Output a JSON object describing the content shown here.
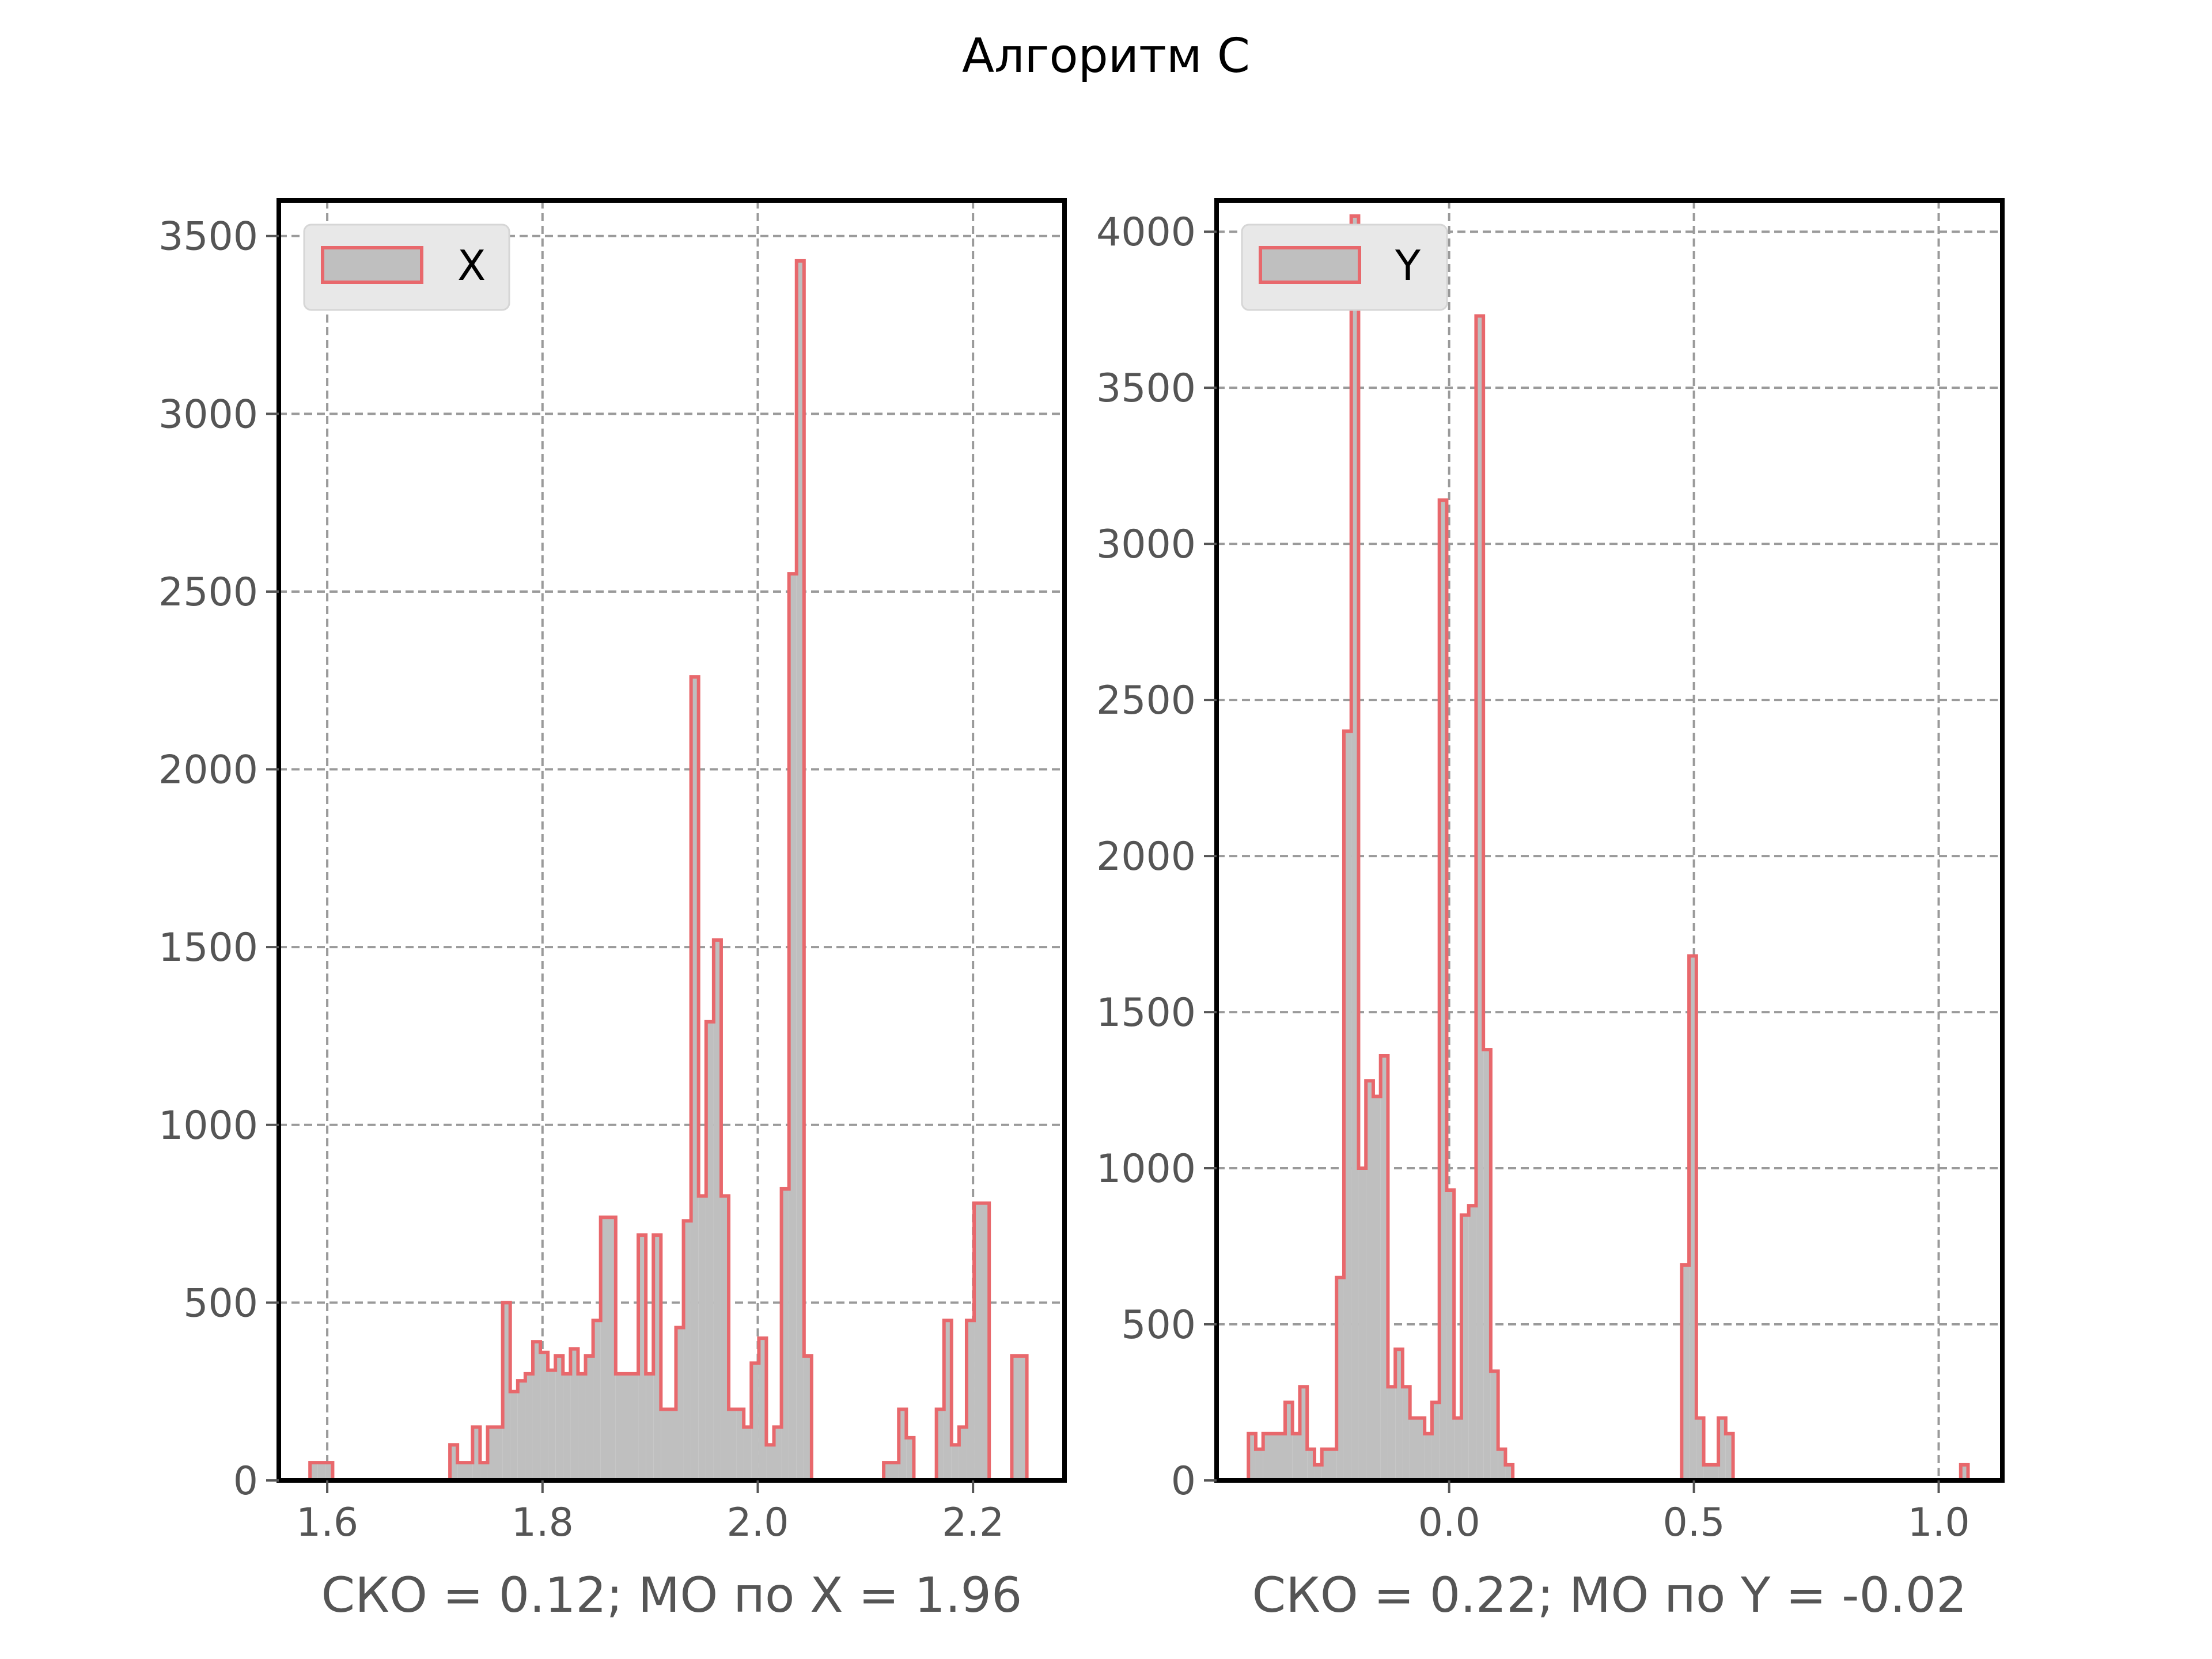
{
  "suptitle": "Алгоритм C",
  "colors": {
    "fill": "#bfbfbf",
    "edge": "#e8686c",
    "grid": "#9a9a9a",
    "frame": "#000000",
    "tick_text": "#555555",
    "legend_bg": "#e8e8e8"
  },
  "chart_data": [
    {
      "type": "histogram",
      "legend": "X",
      "legend_position": "upper-left",
      "xlabel": "СКО = 0.12; МО по X = 1.96",
      "xlim": [
        1.555,
        2.285
      ],
      "ylim": [
        0,
        3600
      ],
      "grid": true,
      "xticks": [
        1.6,
        1.8,
        2.0,
        2.2
      ],
      "xtick_labels": [
        "1.6",
        "1.8",
        "2.0",
        "2.2"
      ],
      "yticks": [
        0,
        500,
        1000,
        1500,
        2000,
        2500,
        3000,
        3500
      ],
      "ytick_labels": [
        "0",
        "500",
        "1000",
        "1500",
        "2000",
        "2500",
        "3000",
        "3500"
      ],
      "bins": [
        [
          1.584,
          1.591,
          50
        ],
        [
          1.591,
          1.598,
          50
        ],
        [
          1.598,
          1.605,
          50
        ],
        [
          1.714,
          1.721,
          100
        ],
        [
          1.721,
          1.735,
          50
        ],
        [
          1.735,
          1.742,
          150
        ],
        [
          1.742,
          1.749,
          50
        ],
        [
          1.749,
          1.763,
          150
        ],
        [
          1.763,
          1.77,
          500
        ],
        [
          1.77,
          1.777,
          250
        ],
        [
          1.777,
          1.784,
          280
        ],
        [
          1.784,
          1.791,
          300
        ],
        [
          1.791,
          1.798,
          390
        ],
        [
          1.798,
          1.805,
          360
        ],
        [
          1.805,
          1.812,
          310
        ],
        [
          1.812,
          1.819,
          350
        ],
        [
          1.819,
          1.826,
          300
        ],
        [
          1.826,
          1.833,
          370
        ],
        [
          1.833,
          1.84,
          300
        ],
        [
          1.84,
          1.847,
          350
        ],
        [
          1.847,
          1.854,
          450
        ],
        [
          1.854,
          1.868,
          740
        ],
        [
          1.868,
          1.889,
          300
        ],
        [
          1.889,
          1.896,
          690
        ],
        [
          1.896,
          1.903,
          300
        ],
        [
          1.903,
          1.91,
          690
        ],
        [
          1.91,
          1.924,
          200
        ],
        [
          1.924,
          1.931,
          430
        ],
        [
          1.931,
          1.938,
          730
        ],
        [
          1.938,
          1.945,
          2260
        ],
        [
          1.945,
          1.952,
          800
        ],
        [
          1.952,
          1.959,
          1290
        ],
        [
          1.959,
          1.966,
          1520
        ],
        [
          1.966,
          1.973,
          800
        ],
        [
          1.973,
          1.98,
          200
        ],
        [
          1.98,
          1.987,
          200
        ],
        [
          1.987,
          1.994,
          150
        ],
        [
          1.994,
          2.001,
          330
        ],
        [
          2.001,
          2.008,
          400
        ],
        [
          2.008,
          2.015,
          100
        ],
        [
          2.015,
          2.022,
          150
        ],
        [
          2.022,
          2.029,
          820
        ],
        [
          2.029,
          2.036,
          2550
        ],
        [
          2.036,
          2.043,
          3430
        ],
        [
          2.043,
          2.05,
          350
        ],
        [
          2.117,
          2.131,
          50
        ],
        [
          2.131,
          2.138,
          200
        ],
        [
          2.138,
          2.145,
          120
        ],
        [
          2.166,
          2.173,
          200
        ],
        [
          2.173,
          2.18,
          450
        ],
        [
          2.18,
          2.187,
          100
        ],
        [
          2.187,
          2.194,
          150
        ],
        [
          2.194,
          2.201,
          450
        ],
        [
          2.201,
          2.215,
          780
        ],
        [
          2.236,
          2.25,
          350
        ]
      ]
    },
    {
      "type": "histogram",
      "legend": "Y",
      "legend_position": "upper-left",
      "xlabel": "СКО = 0.22; МО по Y = -0.02",
      "xlim": [
        -0.475,
        1.13
      ],
      "ylim": [
        0,
        4100
      ],
      "grid": true,
      "xticks": [
        0.0,
        0.5,
        1.0
      ],
      "xtick_labels": [
        "0.0",
        "0.5",
        "1.0"
      ],
      "yticks": [
        0,
        500,
        1000,
        1500,
        2000,
        2500,
        3000,
        3500,
        4000
      ],
      "ytick_labels": [
        "0",
        "500",
        "1000",
        "1500",
        "2000",
        "2500",
        "3000",
        "3500",
        "4000"
      ],
      "bins": [
        [
          -0.41,
          -0.395,
          150
        ],
        [
          -0.395,
          -0.38,
          100
        ],
        [
          -0.38,
          -0.335,
          150
        ],
        [
          -0.335,
          -0.32,
          250
        ],
        [
          -0.32,
          -0.305,
          150
        ],
        [
          -0.305,
          -0.29,
          300
        ],
        [
          -0.29,
          -0.275,
          100
        ],
        [
          -0.275,
          -0.26,
          50
        ],
        [
          -0.26,
          -0.23,
          100
        ],
        [
          -0.23,
          -0.215,
          650
        ],
        [
          -0.215,
          -0.2,
          2400
        ],
        [
          -0.2,
          -0.185,
          4050
        ],
        [
          -0.185,
          -0.17,
          1000
        ],
        [
          -0.17,
          -0.155,
          1280
        ],
        [
          -0.155,
          -0.14,
          1230
        ],
        [
          -0.14,
          -0.125,
          1360
        ],
        [
          -0.125,
          -0.11,
          300
        ],
        [
          -0.11,
          -0.095,
          420
        ],
        [
          -0.095,
          -0.08,
          300
        ],
        [
          -0.08,
          -0.05,
          200
        ],
        [
          -0.05,
          -0.035,
          150
        ],
        [
          -0.035,
          -0.02,
          250
        ],
        [
          -0.02,
          -0.005,
          3140
        ],
        [
          -0.005,
          0.01,
          930
        ],
        [
          0.01,
          0.025,
          200
        ],
        [
          0.025,
          0.04,
          850
        ],
        [
          0.04,
          0.055,
          880
        ],
        [
          0.055,
          0.07,
          3730
        ],
        [
          0.07,
          0.085,
          1380
        ],
        [
          0.085,
          0.1,
          350
        ],
        [
          0.1,
          0.115,
          100
        ],
        [
          0.115,
          0.13,
          50
        ],
        [
          0.475,
          0.49,
          690
        ],
        [
          0.49,
          0.505,
          1680
        ],
        [
          0.505,
          0.52,
          200
        ],
        [
          0.52,
          0.55,
          50
        ],
        [
          0.55,
          0.565,
          200
        ],
        [
          0.565,
          0.58,
          150
        ],
        [
          1.045,
          1.06,
          50
        ]
      ]
    }
  ]
}
